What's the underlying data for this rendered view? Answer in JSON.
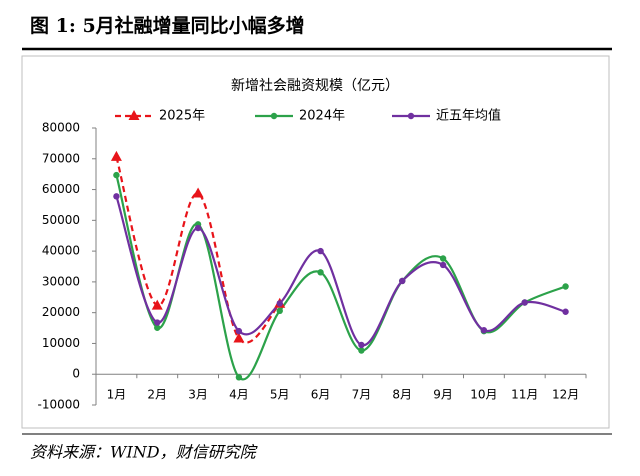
{
  "header": {
    "title": "图 1:  5月社融增量同比小幅多增"
  },
  "chart_data": {
    "type": "line",
    "title": "新增社会融资规模（亿元）",
    "categories": [
      "1月",
      "2月",
      "3月",
      "4月",
      "5月",
      "6月",
      "7月",
      "8月",
      "9月",
      "10月",
      "11月",
      "12月"
    ],
    "series": [
      {
        "name": "2025年",
        "color": "#e8141a",
        "dash": true,
        "marker": "triangle",
        "values": [
          70600,
          22300,
          58700,
          11600,
          22900,
          null,
          null,
          null,
          null,
          null,
          null,
          null
        ]
      },
      {
        "name": "2024年",
        "color": "#2ca24a",
        "dash": false,
        "marker": "circle",
        "values": [
          64700,
          15100,
          48700,
          -1000,
          20600,
          33100,
          7700,
          30300,
          37600,
          14000,
          23300,
          28500
        ]
      },
      {
        "name": "近五年均值",
        "color": "#7030a0",
        "dash": false,
        "marker": "circle",
        "values": [
          57800,
          16800,
          47500,
          14000,
          23000,
          40000,
          9500,
          30300,
          35500,
          14300,
          23300,
          20300
        ]
      }
    ],
    "ylim": [
      -10000,
      80000
    ],
    "yticks": [
      -10000,
      0,
      10000,
      20000,
      30000,
      40000,
      50000,
      60000,
      70000,
      80000
    ],
    "smooth": true
  },
  "footer": {
    "source": "资料来源：WIND，财信研究院"
  }
}
